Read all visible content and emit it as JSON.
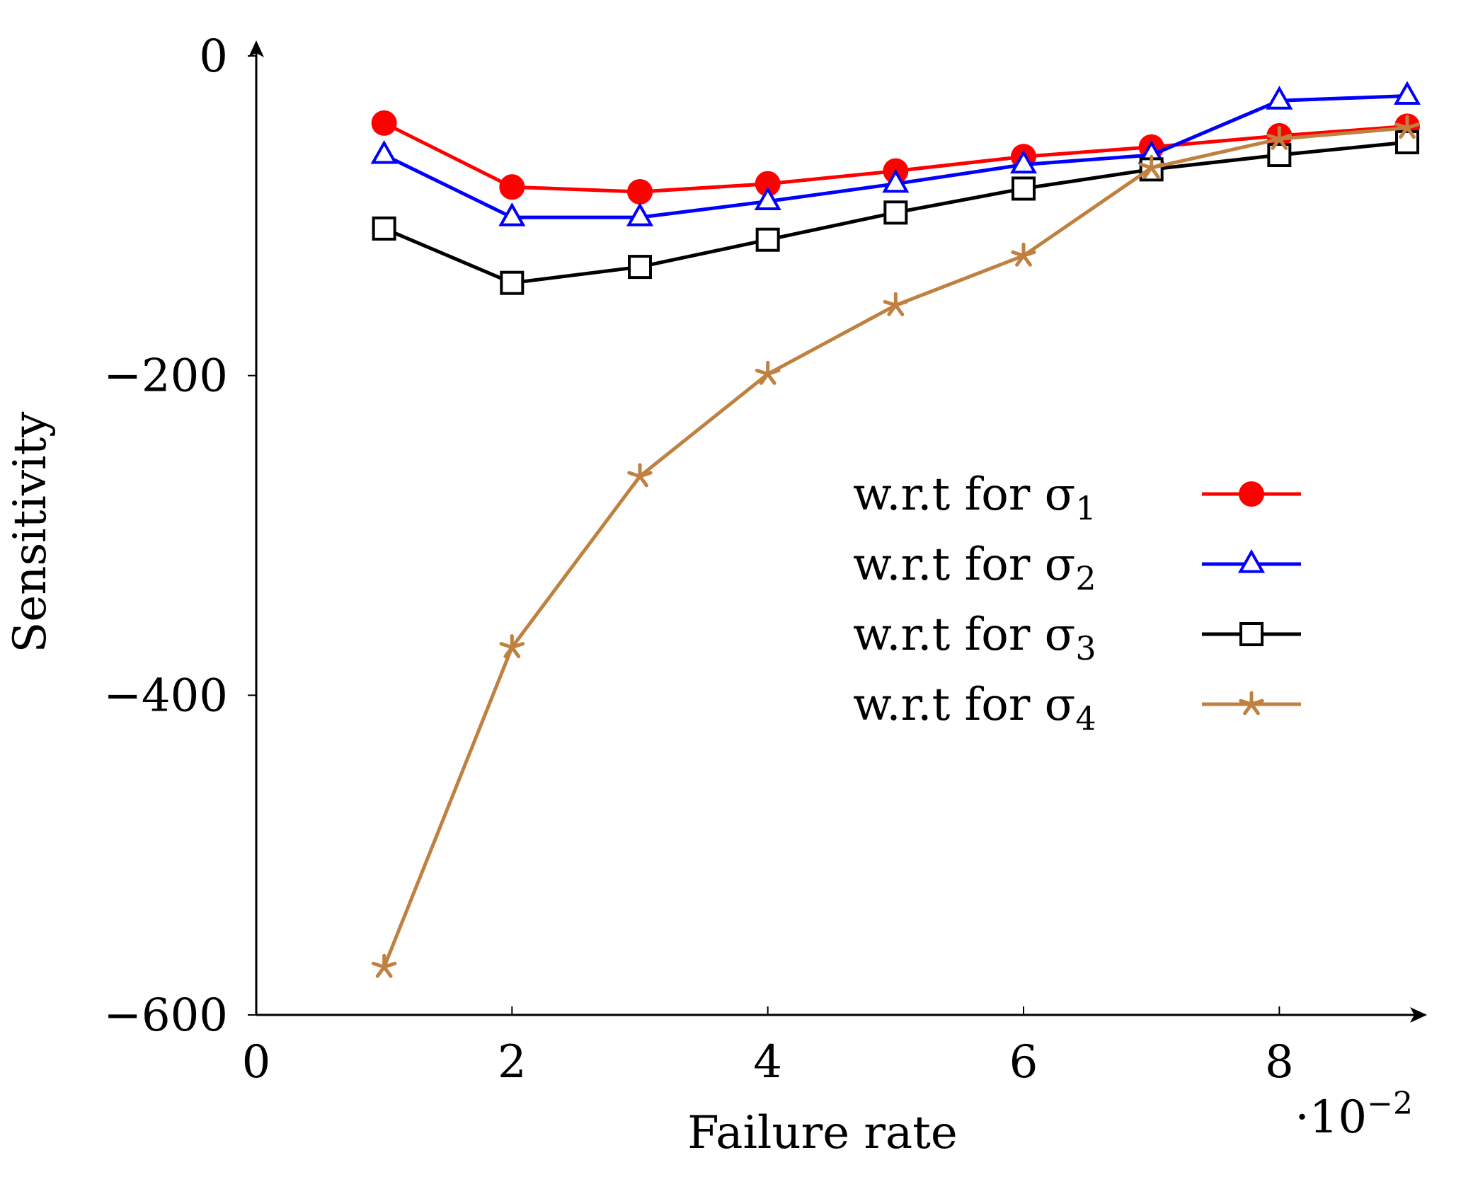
{
  "chart_data": {
    "type": "line",
    "title": "",
    "xlabel": "Failure rate",
    "ylabel": "Sensitivity",
    "xlim": [
      0,
      9
    ],
    "ylim": [
      -600,
      0
    ],
    "x_ticks": [
      0,
      2,
      4,
      6,
      8
    ],
    "x_tick_labels": [
      "0",
      "2",
      "4",
      "6",
      "8"
    ],
    "y_ticks": [
      0,
      -200,
      -400,
      -600
    ],
    "y_tick_labels": [
      "0",
      "−200",
      "−400",
      "−600"
    ],
    "x_scale_label": {
      "prefix": "·10",
      "exponent": "−2"
    },
    "grid": false,
    "legend_position": "right",
    "x": [
      1,
      2,
      3,
      4,
      5,
      6,
      7,
      8,
      9
    ],
    "series": [
      {
        "name": "w.r.t for σ",
        "subscript": "1",
        "color": "#ff0000",
        "marker": "circle",
        "values": [
          -42,
          -82,
          -85,
          -80,
          -72,
          -63,
          -57,
          -50,
          -44
        ]
      },
      {
        "name": "w.r.t for σ",
        "subscript": "2",
        "color": "#0000ff",
        "marker": "triangle",
        "values": [
          -62,
          -101,
          -101,
          -91,
          -80,
          -68,
          -62,
          -28,
          -25
        ]
      },
      {
        "name": "w.r.t for σ",
        "subscript": "3",
        "color": "#000000",
        "marker": "square",
        "values": [
          -108,
          -142,
          -132,
          -115,
          -98,
          -83,
          -71,
          -62,
          -54
        ]
      },
      {
        "name": "w.r.t for σ",
        "subscript": "4",
        "color": "#bf8040",
        "marker": "star",
        "values": [
          -570,
          -370,
          -263,
          -199,
          -156,
          -125,
          -70,
          -52,
          -45
        ]
      }
    ]
  }
}
